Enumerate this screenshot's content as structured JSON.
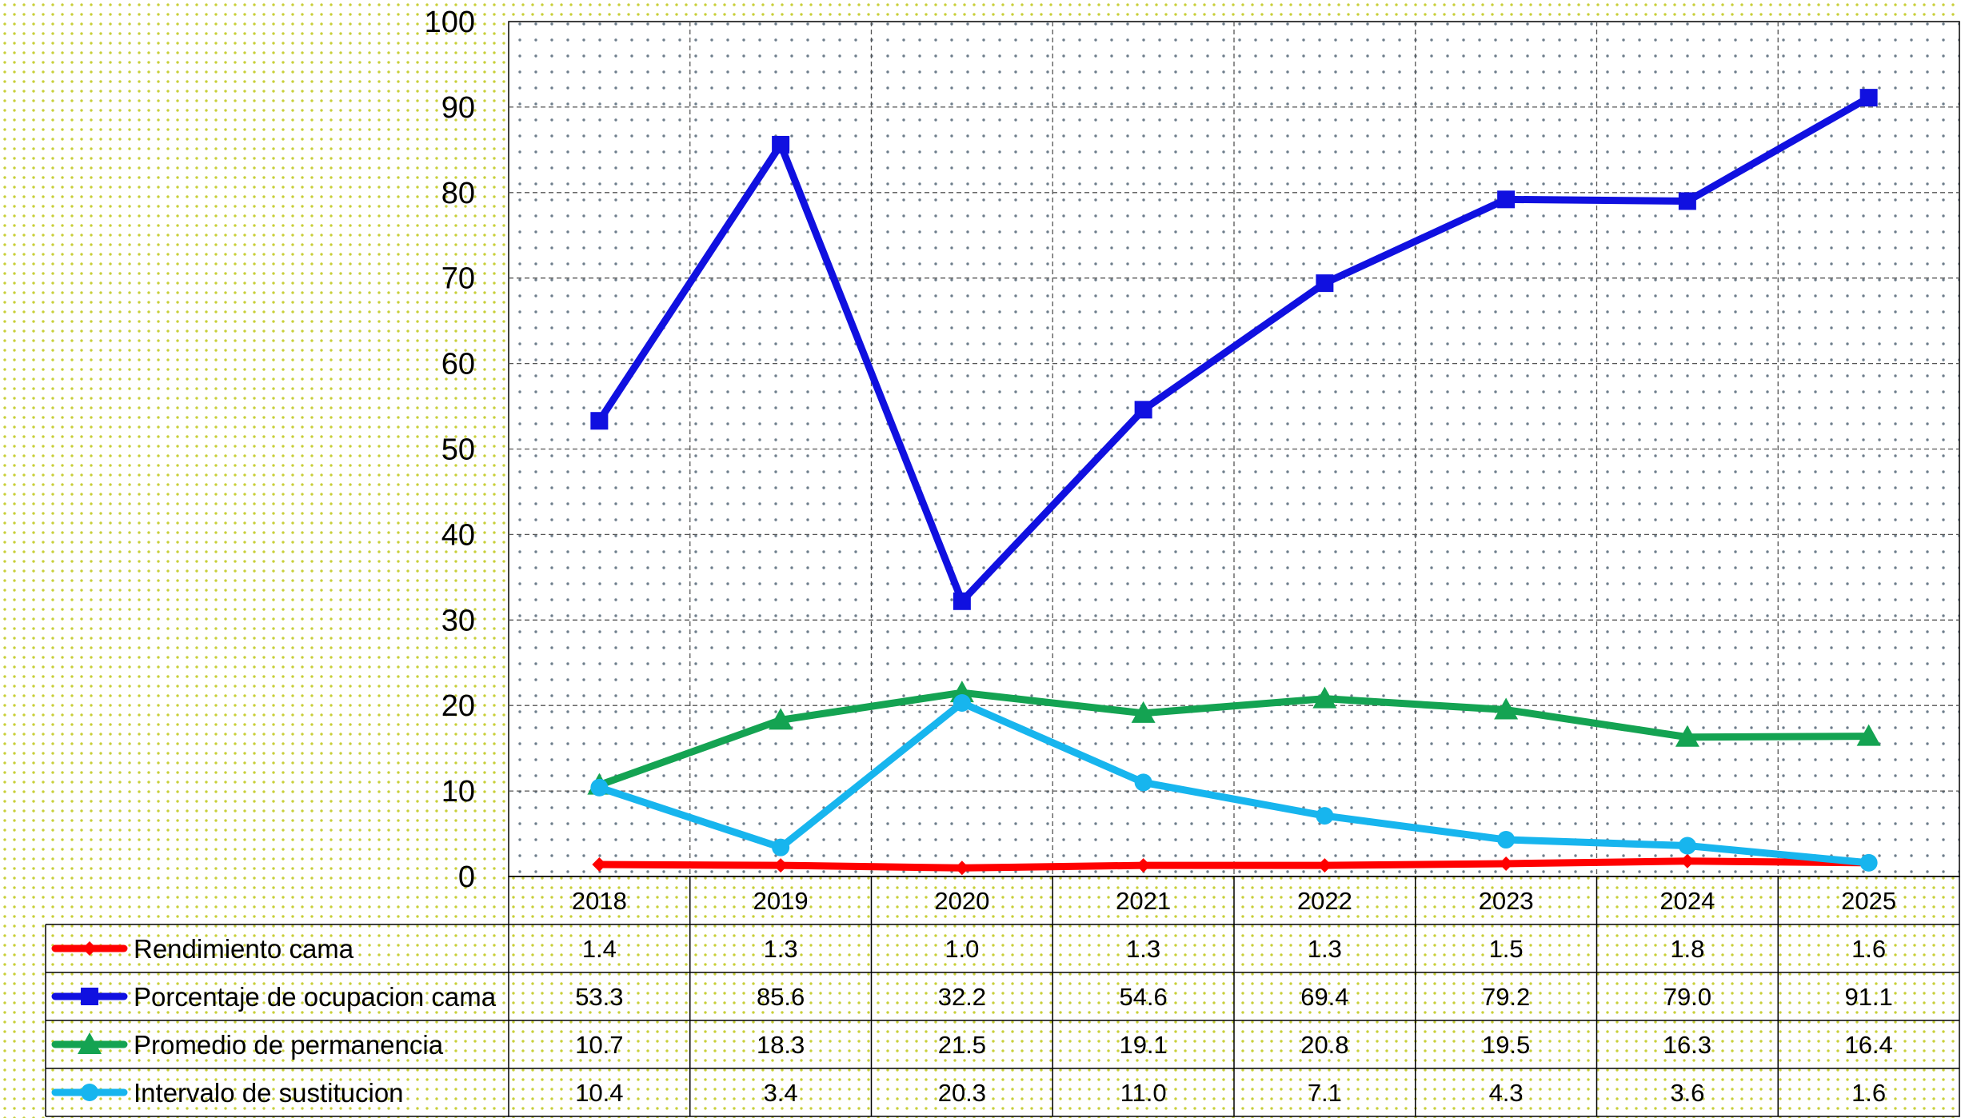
{
  "chart_data": {
    "type": "line",
    "title": "",
    "xlabel": "",
    "ylabel": "",
    "ylim": [
      0,
      100
    ],
    "yticks": [
      "0",
      "10",
      "20",
      "30",
      "40",
      "50",
      "60",
      "70",
      "80",
      "90",
      "100"
    ],
    "grid": true,
    "legend": "data-table-below",
    "categories": [
      "2018",
      "2019",
      "2020",
      "2021",
      "2022",
      "2023",
      "2024",
      "2025"
    ],
    "series": [
      {
        "name": "Rendimiento cama",
        "color": "#ff0000",
        "marker": "diamond",
        "values": [
          1.4,
          1.3,
          1.0,
          1.3,
          1.3,
          1.5,
          1.8,
          1.6
        ],
        "labels": [
          "1.4",
          "1.3",
          "1.0",
          "1.3",
          "1.3",
          "1.5",
          "1.8",
          "1.6"
        ]
      },
      {
        "name": "Porcentaje de ocupacion cama",
        "color": "#1010e0",
        "marker": "square",
        "values": [
          53.3,
          85.6,
          32.2,
          54.6,
          69.4,
          79.2,
          79.0,
          91.1
        ],
        "labels": [
          "53.3",
          "85.6",
          "32.2",
          "54.6",
          "69.4",
          "79.2",
          "79.0",
          "91.1"
        ]
      },
      {
        "name": "Promedio de permanencia",
        "color": "#14a352",
        "marker": "triangle",
        "values": [
          10.7,
          18.3,
          21.5,
          19.1,
          20.8,
          19.5,
          16.3,
          16.4
        ],
        "labels": [
          "10.7",
          "18.3",
          "21.5",
          "19.1",
          "20.8",
          "19.5",
          "16.3",
          "16.4"
        ]
      },
      {
        "name": "Intervalo de sustitucion",
        "color": "#17b5ee",
        "marker": "circle",
        "values": [
          10.4,
          3.4,
          20.3,
          11.0,
          7.1,
          4.3,
          3.6,
          1.6
        ],
        "labels": [
          "10.4",
          "3.4",
          "20.3",
          "11.0",
          "7.1",
          "4.3",
          "3.6",
          "1.6"
        ]
      }
    ]
  }
}
